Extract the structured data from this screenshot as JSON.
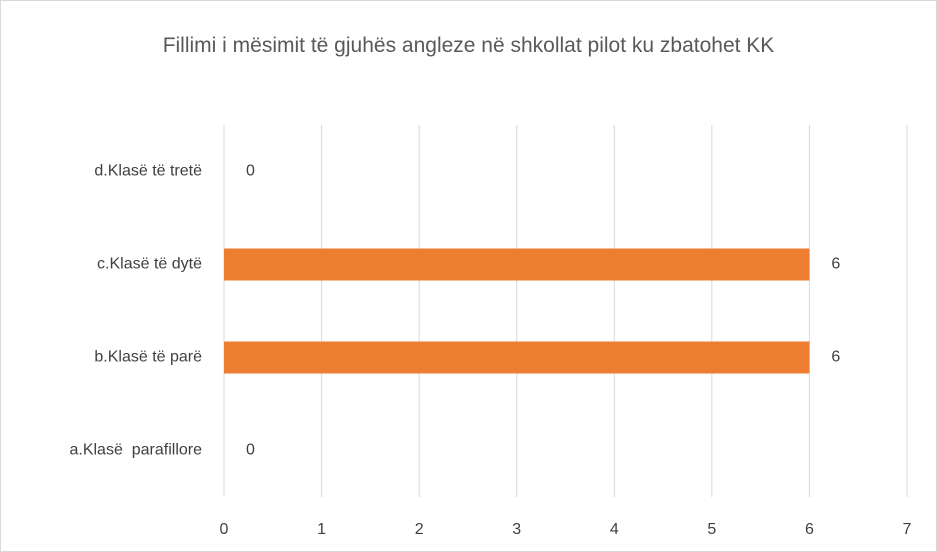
{
  "chart_data": {
    "type": "bar",
    "orientation": "horizontal",
    "title": "Fillimi i mësimit të gjuhës angleze në shkollat pilot ku zbatohet KK",
    "categories": [
      "a.Klasë  parafillore",
      "b.Klasë të parë",
      "c.Klasë të dytë",
      "d.Klasë të tretë"
    ],
    "values": [
      0,
      6,
      6,
      0
    ],
    "color": "#ed7d31",
    "xlim": [
      0,
      7
    ],
    "xticks": [
      0,
      1,
      2,
      3,
      4,
      5,
      6,
      7
    ],
    "grid": true
  }
}
